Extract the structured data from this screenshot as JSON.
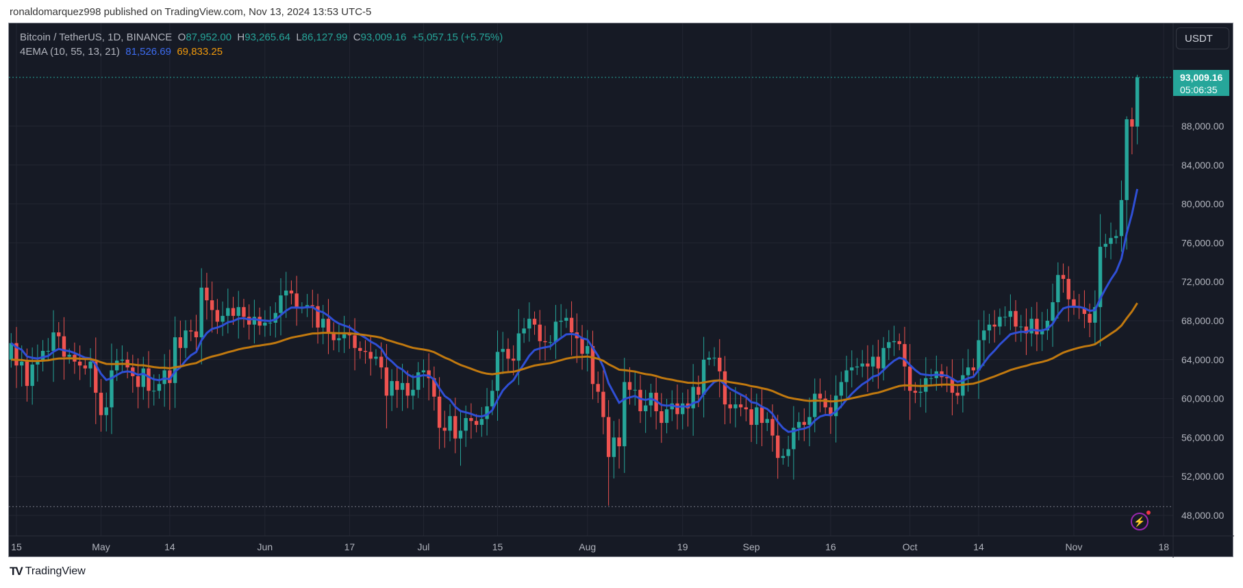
{
  "header": {
    "published": "ronaldomarquez998 published on TradingView.com, Nov 13, 2024 13:53 UTC-5"
  },
  "legend": {
    "symbol": "Bitcoin / TetherUS, 1D, BINANCE",
    "o_label": "O",
    "o": "87,952.00",
    "h_label": "H",
    "h": "93,265.64",
    "l_label": "L",
    "l": "86,127.99",
    "c_label": "C",
    "c": "93,009.16",
    "change": "+5,057.15 (+5.75%)",
    "indicator": "4EMA (10, 55, 13, 21)",
    "ema_fast": "81,526.69",
    "ema_slow": "69,833.25"
  },
  "currency_button": "USDT",
  "last_price": {
    "price": "93,009.16",
    "countdown": "05:06:35"
  },
  "footer": {
    "brand": "TradingView"
  },
  "colors": {
    "up": "#26a69a",
    "down": "#ef5350",
    "ema_fast": "#2f4fd6",
    "ema_slow": "#c1790f",
    "bg": "#161a25",
    "grid": "#232632"
  },
  "chart_data": {
    "type": "candlestick",
    "title": "Bitcoin / TetherUS, 1D, BINANCE",
    "start_date": "2024-04-14",
    "unit": "USDT (thousands in closes)",
    "closes": [
      65.7,
      63.4,
      63.8,
      61.3,
      63.5,
      63.8,
      64.9,
      64.9,
      66.8,
      66.4,
      64.3,
      64.5,
      63.8,
      63.4,
      63.1,
      63.8,
      60.6,
      58.3,
      59.1,
      62.9,
      63.9,
      64.0,
      63.2,
      62.3,
      61.2,
      63.1,
      60.8,
      60.8,
      61.5,
      62.9,
      61.6,
      66.3,
      65.2,
      67.0,
      66.9,
      66.3,
      71.4,
      70.1,
      69.1,
      67.9,
      68.5,
      69.3,
      68.5,
      69.4,
      68.4,
      67.6,
      68.4,
      67.5,
      67.8,
      67.8,
      68.8,
      70.6,
      71.1,
      70.8,
      69.3,
      69.3,
      69.6,
      69.5,
      67.3,
      68.2,
      66.8,
      66.0,
      66.2,
      66.6,
      66.5,
      65.2,
      64.9,
      64.8,
      64.1,
      64.3,
      63.2,
      60.3,
      61.8,
      60.9,
      61.6,
      60.3,
      60.9,
      62.7,
      62.9,
      62.1,
      60.2,
      57.0,
      56.7,
      58.2,
      55.9,
      56.7,
      58.0,
      57.7,
      57.3,
      57.9,
      59.2,
      60.8,
      64.8,
      65.1,
      64.1,
      63.9,
      66.7,
      67.2,
      68.2,
      67.6,
      65.9,
      65.8,
      65.8,
      67.9,
      68.0,
      68.3,
      66.8,
      66.2,
      64.6,
      65.4,
      61.5,
      60.7,
      58.1,
      54.0,
      56.0,
      55.1,
      61.7,
      60.9,
      60.9,
      58.7,
      59.3,
      60.6,
      58.7,
      57.5,
      58.9,
      59.5,
      58.4,
      59.5,
      59.0,
      61.2,
      60.4,
      64.0,
      64.2,
      64.2,
      62.8,
      59.4,
      59.0,
      59.4,
      59.1,
      58.9,
      57.3,
      59.1,
      57.5,
      57.9,
      56.2,
      53.9,
      54.1,
      54.8,
      57.0,
      57.6,
      57.3,
      58.1,
      60.5,
      60.0,
      59.1,
      58.2,
      60.3,
      61.7,
      62.9,
      63.2,
      63.3,
      63.6,
      63.3,
      64.3,
      63.1,
      65.2,
      65.8,
      65.9,
      65.6,
      63.3,
      60.8,
      60.6,
      60.7,
      62.1,
      62.1,
      62.8,
      62.2,
      62.1,
      60.6,
      60.3,
      62.4,
      63.2,
      62.9,
      66.0,
      67.0,
      67.6,
      67.4,
      68.4,
      68.4,
      69.0,
      67.4,
      67.4,
      66.7,
      68.2,
      66.6,
      67.0,
      68.0,
      69.9,
      72.7,
      72.3,
      70.2,
      69.5,
      69.3,
      68.7,
      67.8,
      69.4,
      75.6,
      75.9,
      76.5,
      76.7,
      80.4,
      88.7,
      87.952,
      93.009
    ],
    "first_open": 64.0,
    "wick_overrides": {
      "113": {
        "low": 49.0
      },
      "212": {
        "high": 89.9,
        "low": 85.1
      },
      "213": {
        "high": 93.266,
        "low": 86.128
      },
      "211": {
        "high": 89.0
      },
      "200": {
        "high": 73.6
      }
    },
    "ema_periods": [
      10,
      55
    ],
    "yticks": [
      48000,
      52000,
      56000,
      60000,
      64000,
      68000,
      72000,
      76000,
      80000,
      84000,
      88000
    ],
    "ytick_labels": [
      "48,000.00",
      "52,000.00",
      "56,000.00",
      "60,000.00",
      "64,000.00",
      "68,000.00",
      "72,000.00",
      "76,000.00",
      "80,000.00",
      "84,000.00",
      "88,000.00"
    ],
    "xticks": [
      {
        "label": "15",
        "day": 1
      },
      {
        "label": "May",
        "day": 17
      },
      {
        "label": "14",
        "day": 30
      },
      {
        "label": "Jun",
        "day": 48
      },
      {
        "label": "17",
        "day": 64
      },
      {
        "label": "Jul",
        "day": 78
      },
      {
        "label": "15",
        "day": 92
      },
      {
        "label": "Aug",
        "day": 109
      },
      {
        "label": "19",
        "day": 127
      },
      {
        "label": "Sep",
        "day": 140
      },
      {
        "label": "16",
        "day": 155
      },
      {
        "label": "Oct",
        "day": 170
      },
      {
        "label": "14",
        "day": 183
      },
      {
        "label": "Nov",
        "day": 201
      },
      {
        "label": "18",
        "day": 218
      }
    ],
    "range_low_line": 48900,
    "grid": true
  }
}
